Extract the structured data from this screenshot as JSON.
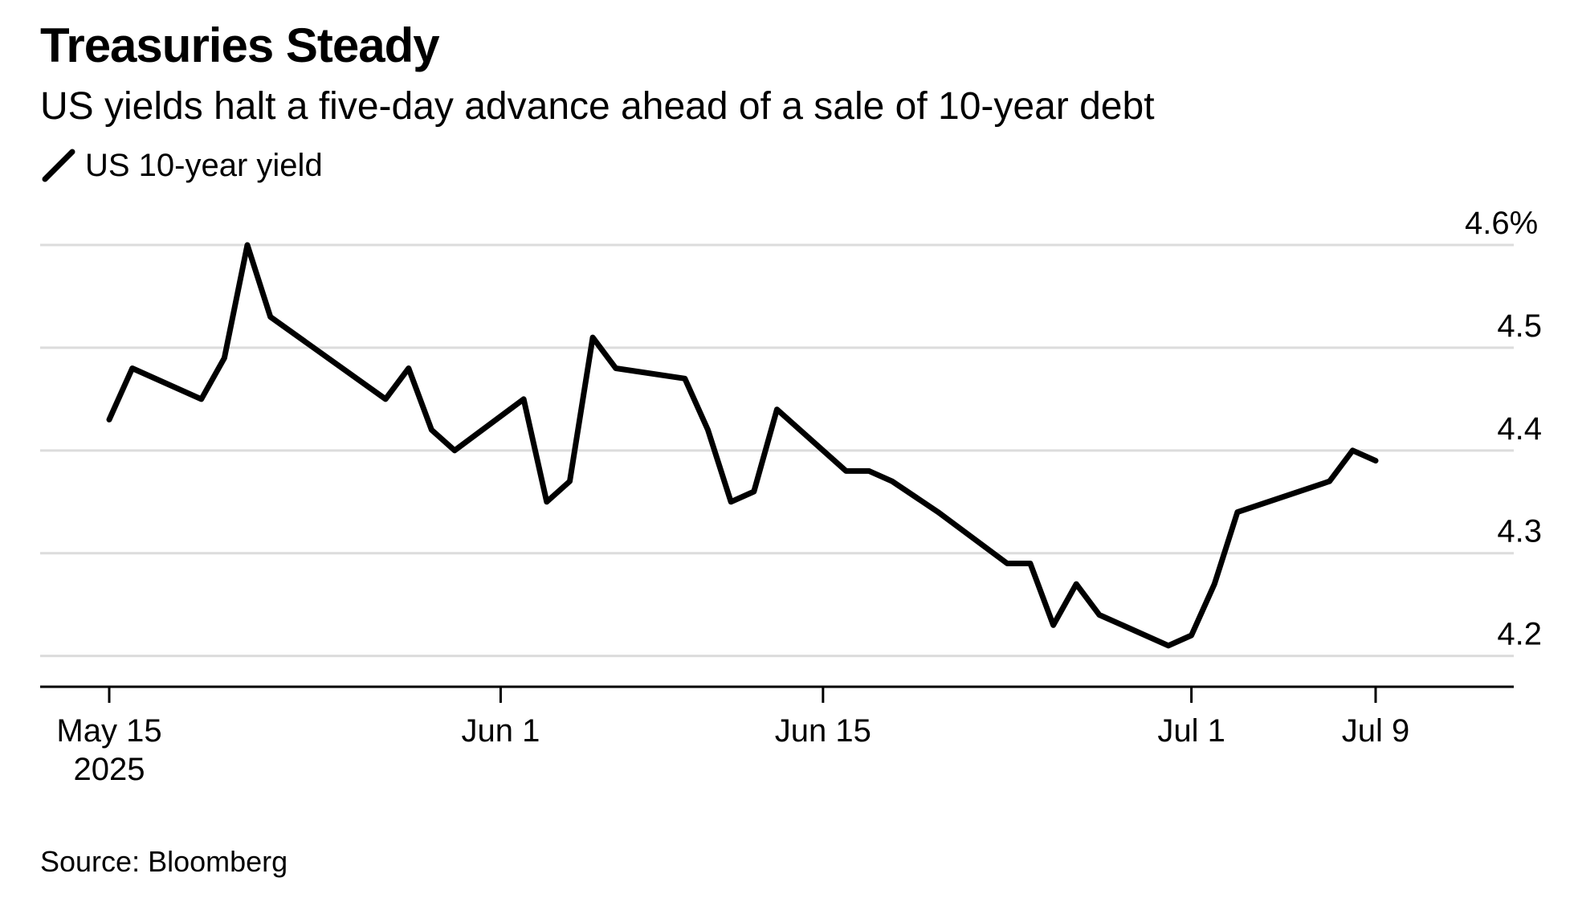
{
  "title": "Treasuries Steady",
  "subtitle": "US yields halt a five-day advance ahead of a sale of 10-year debt",
  "legend": {
    "label": "US 10-year yield"
  },
  "source": "Source: Bloomberg",
  "chart_data": {
    "type": "line",
    "series": [
      {
        "name": "US 10-year yield",
        "color": "#000000",
        "points": [
          [
            "2025-05-15",
            4.43
          ],
          [
            "2025-05-16",
            4.48
          ],
          [
            "2025-05-19",
            4.45
          ],
          [
            "2025-05-20",
            4.49
          ],
          [
            "2025-05-21",
            4.6
          ],
          [
            "2025-05-22",
            4.53
          ],
          [
            "2025-05-27",
            4.45
          ],
          [
            "2025-05-28",
            4.48
          ],
          [
            "2025-05-29",
            4.42
          ],
          [
            "2025-05-30",
            4.4
          ],
          [
            "2025-06-02",
            4.45
          ],
          [
            "2025-06-03",
            4.35
          ],
          [
            "2025-06-04",
            4.37
          ],
          [
            "2025-06-05",
            4.51
          ],
          [
            "2025-06-06",
            4.48
          ],
          [
            "2025-06-09",
            4.47
          ],
          [
            "2025-06-10",
            4.42
          ],
          [
            "2025-06-11",
            4.35
          ],
          [
            "2025-06-12",
            4.36
          ],
          [
            "2025-06-13",
            4.44
          ],
          [
            "2025-06-16",
            4.38
          ],
          [
            "2025-06-17",
            4.38
          ],
          [
            "2025-06-18",
            4.37
          ],
          [
            "2025-06-20",
            4.34
          ],
          [
            "2025-06-23",
            4.29
          ],
          [
            "2025-06-24",
            4.29
          ],
          [
            "2025-06-25",
            4.23
          ],
          [
            "2025-06-26",
            4.27
          ],
          [
            "2025-06-27",
            4.24
          ],
          [
            "2025-06-30",
            4.21
          ],
          [
            "2025-07-01",
            4.22
          ],
          [
            "2025-07-02",
            4.27
          ],
          [
            "2025-07-03",
            4.34
          ],
          [
            "2025-07-07",
            4.37
          ],
          [
            "2025-07-08",
            4.4
          ],
          [
            "2025-07-09",
            4.39
          ]
        ]
      }
    ],
    "x_ticks": [
      {
        "date": "2025-05-15",
        "label": "May 15",
        "sublabel": "2025"
      },
      {
        "date": "2025-06-01",
        "label": "Jun 1",
        "sublabel": ""
      },
      {
        "date": "2025-06-15",
        "label": "Jun 15",
        "sublabel": ""
      },
      {
        "date": "2025-07-01",
        "label": "Jul 1",
        "sublabel": ""
      },
      {
        "date": "2025-07-09",
        "label": "Jul 9",
        "sublabel": ""
      }
    ],
    "y_ticks": [
      {
        "value": 4.6,
        "label": "4.6%"
      },
      {
        "value": 4.5,
        "label": "4.5"
      },
      {
        "value": 4.4,
        "label": "4.4"
      },
      {
        "value": 4.3,
        "label": "4.3"
      },
      {
        "value": 4.2,
        "label": "4.2"
      }
    ],
    "ylim": [
      4.17,
      4.6
    ],
    "xlim": [
      "2025-05-12",
      "2025-07-15"
    ],
    "y_axis_side": "right",
    "grid": true,
    "gridline_color": "#dcdcdc",
    "axis_color": "#000000",
    "line_color": "#000000"
  }
}
